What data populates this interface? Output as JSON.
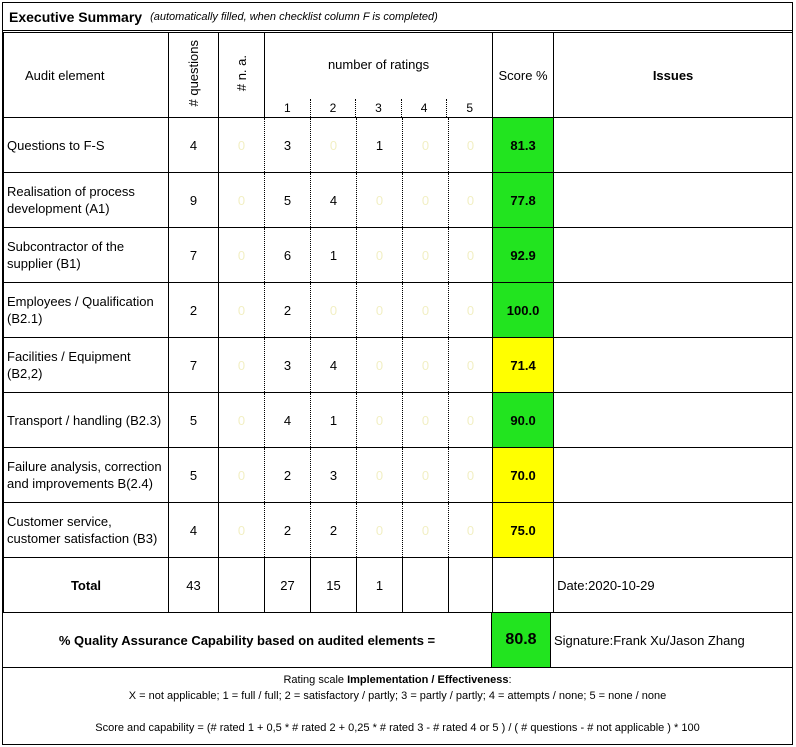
{
  "title": {
    "main": "Executive Summary",
    "sub": "(automatically filled, when checklist column F is completed)"
  },
  "header": {
    "audit_element": "Audit element",
    "questions": "# questions",
    "na": "# n. a.",
    "number_of_ratings": "number of ratings",
    "rating_levels": [
      "1",
      "2",
      "3",
      "4",
      "5"
    ],
    "score": "Score %",
    "issues": "Issues"
  },
  "rows": [
    {
      "element": "Questions to F-S",
      "questions": "4",
      "na": "0",
      "r1": "3",
      "r2": "0",
      "r3": "1",
      "r4": "0",
      "r5": "0",
      "score": "81.3",
      "color": "#22e41f",
      "issues": ""
    },
    {
      "element": "Realisation of process development (A1)",
      "questions": "9",
      "na": "0",
      "r1": "5",
      "r2": "4",
      "r3": "0",
      "r4": "0",
      "r5": "0",
      "score": "77.8",
      "color": "#22e41f",
      "issues": ""
    },
    {
      "element": "Subcontractor of the supplier (B1)",
      "questions": "7",
      "na": "0",
      "r1": "6",
      "r2": "1",
      "r3": "0",
      "r4": "0",
      "r5": "0",
      "score": "92.9",
      "color": "#22e41f",
      "issues": ""
    },
    {
      "element": "Employees / Qualification (B2.1)",
      "questions": "2",
      "na": "0",
      "r1": "2",
      "r2": "0",
      "r3": "0",
      "r4": "0",
      "r5": "0",
      "score": "100.0",
      "color": "#22e41f",
      "issues": ""
    },
    {
      "element": "Facilities / Equipment (B2,2)",
      "questions": "7",
      "na": "0",
      "r1": "3",
      "r2": "4",
      "r3": "0",
      "r4": "0",
      "r5": "0",
      "score": "71.4",
      "color": "#ffff00",
      "issues": ""
    },
    {
      "element": "Transport / handling (B2.3)",
      "questions": "5",
      "na": "0",
      "r1": "4",
      "r2": "1",
      "r3": "0",
      "r4": "0",
      "r5": "0",
      "score": "90.0",
      "color": "#22e41f",
      "issues": ""
    },
    {
      "element": "Failure analysis, correction and improvements B(2.4)",
      "questions": "5",
      "na": "0",
      "r1": "2",
      "r2": "3",
      "r3": "0",
      "r4": "0",
      "r5": "0",
      "score": "70.0",
      "color": "#ffff00",
      "issues": ""
    },
    {
      "element": "Customer service, customer satisfaction (B3)",
      "questions": "4",
      "na": "0",
      "r1": "2",
      "r2": "2",
      "r3": "0",
      "r4": "0",
      "r5": "0",
      "score": "75.0",
      "color": "#ffff00",
      "issues": ""
    }
  ],
  "total": {
    "label": "Total",
    "questions": "43",
    "na": "",
    "r1": "27",
    "r2": "15",
    "r3": "1",
    "r4": "",
    "r5": "",
    "score": "",
    "date": "Date:2020-10-29"
  },
  "capability": {
    "label": "% Quality Assurance  Capability based on audited elements =",
    "value": "80.8",
    "color": "#22e41f",
    "signature": "Signature:Frank Xu/Jason Zhang"
  },
  "legend": {
    "line1_prefix": "Rating scale ",
    "line1_bold": "Implementation / Effectiveness",
    "line1_suffix": ":",
    "line2": "X = not applicable;  1 = full / full;  2 =  satisfactory / partly;  3 = partly / partly;  4 = attempts / none;  5 = none / none",
    "line3": "Score and capability =  (# rated 1 + 0,5 * # rated 2 + 0,25 * # rated 3 - # rated 4 or 5 ) / ( # questions - # not applicable ) * 100"
  }
}
